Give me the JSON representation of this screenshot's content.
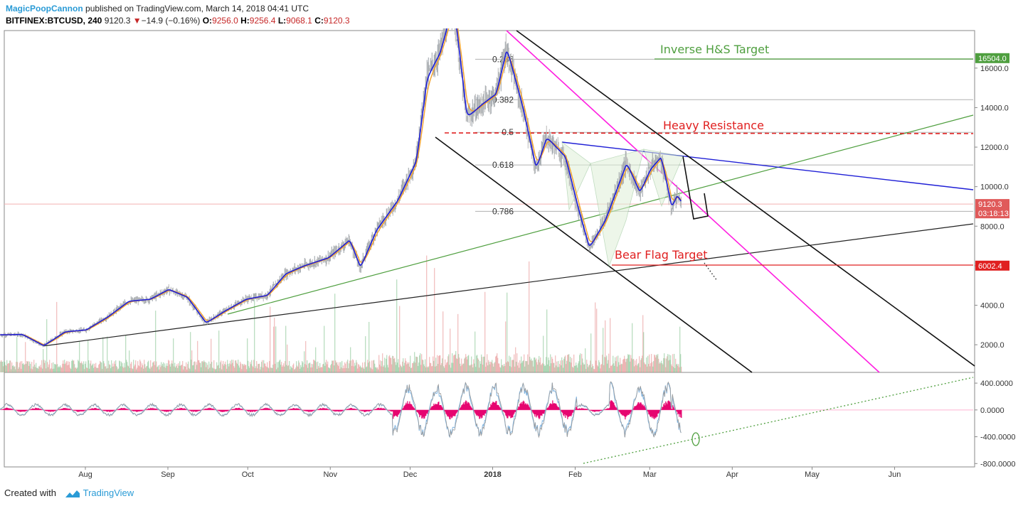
{
  "header": {
    "author": "MagicPoopCannon",
    "published": "published on TradingView.com, March 14, 2018 04:41 UTC",
    "symbol": "BITFINEX:BTCUSD, 240",
    "last": "9120.3",
    "change": "−14.9 (−0.16%)",
    "o_label": "O:",
    "o": "9256.0",
    "h_label": "H:",
    "h": "9256.4",
    "l_label": "L:",
    "l": "9068.1",
    "c_label": "C:",
    "c": "9120.3"
  },
  "footer": {
    "created_with": "Created with",
    "brand": "TradingView"
  },
  "colors": {
    "up": "#7fbf8a",
    "down": "#e58b8b",
    "ema_fast": "#1f1fd6",
    "ema_slow": "#f2a12b",
    "magenta": "#ff1ee0",
    "resist": "#e02020",
    "green": "#4f9f3f",
    "hist": "#e6006e"
  },
  "chart_data": [
    {
      "type": "line",
      "title": "",
      "price_axis": {
        "ylim": [
          600,
          17900
        ],
        "ticks": [
          2000.0,
          4000.0,
          6000.0,
          8000.0,
          10000.0,
          12000.0,
          14000.0,
          16000.0
        ]
      },
      "time_axis": {
        "labels": [
          "Aug",
          "Sep",
          "Oct",
          "Nov",
          "Dec",
          "2018",
          "Feb",
          "Mar",
          "Apr",
          "May",
          "Jun"
        ]
      },
      "price_tags": [
        {
          "value": 16504.0,
          "label": "16504.0",
          "color": "#4f9f3f"
        },
        {
          "value": 9120.3,
          "label": "9120.3",
          "color": "#e05a5a"
        },
        {
          "value": 8650,
          "label": "03:18:13",
          "color": "#e05a5a"
        },
        {
          "value": 6002.4,
          "label": "6002.4",
          "color": "#e02020"
        }
      ],
      "fib_levels": [
        {
          "label": "0.236",
          "value": 16450
        },
        {
          "label": "0.382",
          "value": 14400
        },
        {
          "label": "0.5",
          "value": 12750
        },
        {
          "label": "0.618",
          "value": 11100
        },
        {
          "label": "0.786",
          "value": 8750
        }
      ],
      "annotations": [
        {
          "text": "Inverse H&S Target",
          "color": "#4f9f3f"
        },
        {
          "text": "Heavy Resistance",
          "color": "#e02020"
        },
        {
          "text": "Bear Flag Target",
          "color": "#e02020"
        }
      ],
      "series": [
        {
          "name": "",
          "points": [
            [
              "2017-06-30",
              2500
            ],
            [
              "2017-07-08",
              2520
            ],
            [
              "2017-07-16",
              1950
            ],
            [
              "2017-07-24",
              2650
            ],
            [
              "2017-08-01",
              2750
            ],
            [
              "2017-08-09",
              3400
            ],
            [
              "2017-08-17",
              4200
            ],
            [
              "2017-08-25",
              4300
            ],
            [
              "2017-09-01",
              4800
            ],
            [
              "2017-09-08",
              4400
            ],
            [
              "2017-09-15",
              3100
            ],
            [
              "2017-09-22",
              3700
            ],
            [
              "2017-09-30",
              4300
            ],
            [
              "2017-10-08",
              4500
            ],
            [
              "2017-10-15",
              5600
            ],
            [
              "2017-10-22",
              6000
            ],
            [
              "2017-10-31",
              6400
            ],
            [
              "2017-11-08",
              7300
            ],
            [
              "2017-11-12",
              5900
            ],
            [
              "2017-11-18",
              7800
            ],
            [
              "2017-11-26",
              9300
            ],
            [
              "2017-12-03",
              11300
            ],
            [
              "2017-12-07",
              15500
            ],
            [
              "2017-12-12",
              16800
            ],
            [
              "2017-12-17",
              19300
            ],
            [
              "2017-12-22",
              13500
            ],
            [
              "2017-12-28",
              14200
            ],
            [
              "2018-01-02",
              14700
            ],
            [
              "2018-01-06",
              17000
            ],
            [
              "2018-01-12",
              14000
            ],
            [
              "2018-01-17",
              10900
            ],
            [
              "2018-01-21",
              12500
            ],
            [
              "2018-01-28",
              11500
            ],
            [
              "2018-02-02",
              8800
            ],
            [
              "2018-02-06",
              6900
            ],
            [
              "2018-02-12",
              8300
            ],
            [
              "2018-02-20",
              11200
            ],
            [
              "2018-02-25",
              9700
            ],
            [
              "2018-03-01",
              10900
            ],
            [
              "2018-03-05",
              11500
            ],
            [
              "2018-03-09",
              8900
            ],
            [
              "2018-03-11",
              9600
            ],
            [
              "2018-03-13",
              9120
            ]
          ]
        }
      ]
    },
    {
      "type": "line",
      "title": "",
      "ylim": [
        -850,
        560
      ],
      "ticks": [
        400.0,
        0.0,
        -400.0,
        -800.0
      ],
      "tick_labels": [
        "400.0000",
        "0.0000",
        "-400.0000",
        "-800.0000"
      ]
    }
  ]
}
